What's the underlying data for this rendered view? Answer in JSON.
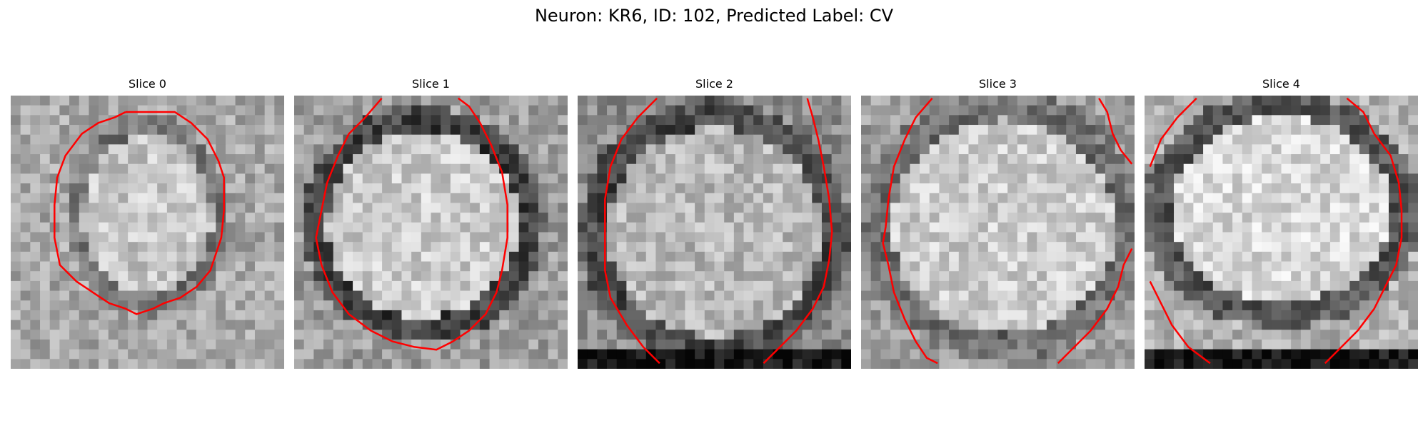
{
  "figure": {
    "title": "Neuron: KR6, ID: 102, Predicted Label: CV",
    "contour_color": "#ff0000",
    "colormap": "gray",
    "panels": [
      {
        "title": "Slice 0"
      },
      {
        "title": "Slice 1"
      },
      {
        "title": "Slice 2"
      },
      {
        "title": "Slice 3"
      },
      {
        "title": "Slice 4"
      }
    ]
  }
}
